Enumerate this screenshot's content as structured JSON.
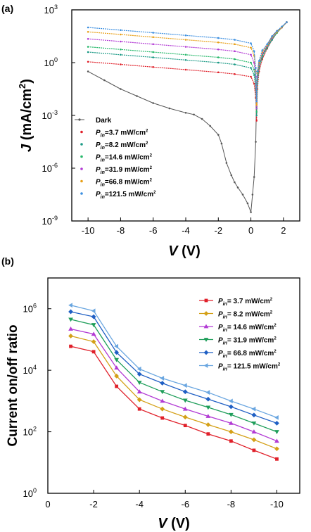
{
  "chart_data": [
    {
      "panel": "(a)",
      "type": "line",
      "xlabel": "V (V)",
      "xlabel_italic": "V",
      "xlabel_rest": " (V)",
      "ylabel": "J (mA/cm2)",
      "ylabel_italic": "J",
      "ylabel_rest": " (mA/cm",
      "ylabel_sup": "2",
      "ylabel_end": ")",
      "xlim": [
        -11,
        3
      ],
      "ylim_log10": [
        -9,
        3
      ],
      "yscale": "log",
      "x_ticks": [
        -10,
        -8,
        -6,
        -4,
        -2,
        0,
        2
      ],
      "y_ticks": [
        {
          "base": "10",
          "exp": "3",
          "log": 3
        },
        {
          "base": "10",
          "exp": "0",
          "log": 0
        },
        {
          "base": "10",
          "exp": "-3",
          "log": -3
        },
        {
          "base": "10",
          "exp": "-6",
          "log": -6
        },
        {
          "base": "10",
          "exp": "-9",
          "log": -9
        }
      ],
      "legend": "center-left",
      "series": [
        {
          "name": "Dark",
          "color": "#555555",
          "x": [
            -10,
            -9,
            -8,
            -7,
            -6,
            -5,
            -4,
            -3.5,
            -3,
            -2.5,
            -2,
            -1.8,
            -1.5,
            -1.2,
            -1,
            -0.8,
            -0.5,
            -0.2,
            0,
            0.1,
            0.2,
            0.3,
            0.35,
            0.4,
            0.5,
            0.7,
            1,
            1.3,
            1.6,
            1.9,
            2.2
          ],
          "y": [
            -0.5,
            -1.0,
            -1.5,
            -1.9,
            -2.3,
            -2.6,
            -2.85,
            -2.95,
            -3.2,
            -3.6,
            -4.1,
            -4.6,
            -5.7,
            -6.4,
            -6.8,
            -7.1,
            -7.5,
            -8.0,
            -8.5,
            -7.5,
            -6.5,
            -4.5,
            -1.6,
            -0.5,
            -0.2,
            0.4,
            1.0,
            1.5,
            1.8,
            2.0,
            2.3
          ]
        },
        {
          "name": "Pin=3.7 mW/cm2",
          "label_main": "=3.7 mW/cm",
          "color": "#e0202a",
          "x": [
            -10,
            -8,
            -6,
            -4,
            -2,
            -1,
            0,
            0.2,
            0.3,
            0.35,
            0.4,
            0.5,
            0.7,
            1,
            1.3,
            1.6,
            1.9,
            2.2
          ],
          "y": [
            0.05,
            -0.1,
            -0.25,
            -0.4,
            -0.55,
            -0.65,
            -0.8,
            -1.2,
            -2.0,
            -3.3,
            -1.5,
            -0.5,
            0.2,
            0.8,
            1.3,
            1.7,
            2.0,
            2.3
          ]
        },
        {
          "name": "Pin=8.2 mW/cm2",
          "label_main": "=8.2 mW/cm",
          "color": "#1c9a86",
          "x": [
            -10,
            -8,
            -6,
            -4,
            -2,
            -1,
            0,
            0.2,
            0.3,
            0.35,
            0.4,
            0.5,
            0.7,
            1,
            1.3,
            1.6,
            1.9,
            2.2
          ],
          "y": [
            0.6,
            0.45,
            0.3,
            0.15,
            0.0,
            -0.1,
            -0.3,
            -0.7,
            -1.5,
            -3.0,
            -1.2,
            -0.3,
            0.3,
            0.85,
            1.3,
            1.7,
            2.0,
            2.3
          ]
        },
        {
          "name": "Pin=14.6 mW/cm2",
          "label_main": "=14.6 mW/cm",
          "color": "#26b86a",
          "x": [
            -10,
            -8,
            -6,
            -4,
            -2,
            -1,
            0,
            0.2,
            0.3,
            0.35,
            0.4,
            0.5,
            0.7,
            1,
            1.3,
            1.6,
            1.9,
            2.2
          ],
          "y": [
            0.9,
            0.75,
            0.6,
            0.45,
            0.3,
            0.2,
            0.0,
            -0.4,
            -1.2,
            -2.8,
            -1.0,
            -0.2,
            0.4,
            0.9,
            1.35,
            1.7,
            2.0,
            2.3
          ]
        },
        {
          "name": "Pin=31.9 mW/cm2",
          "label_main": "=31.9 mW/cm",
          "color": "#b23ad4",
          "x": [
            -10,
            -8,
            -6,
            -4,
            -2,
            -1,
            0,
            0.2,
            0.3,
            0.35,
            0.4,
            0.5,
            0.7,
            1,
            1.3,
            1.6,
            1.9,
            2.2
          ],
          "y": [
            1.35,
            1.2,
            1.05,
            0.9,
            0.75,
            0.65,
            0.45,
            0.0,
            -0.8,
            -2.6,
            -0.8,
            -0.1,
            0.5,
            0.95,
            1.4,
            1.75,
            2.0,
            2.3
          ]
        },
        {
          "name": "Pin=66.8 mW/cm2",
          "label_main": "=66.8 mW/cm",
          "color": "#e8a018",
          "x": [
            -10,
            -8,
            -6,
            -4,
            -2,
            -1,
            0,
            0.2,
            0.3,
            0.35,
            0.4,
            0.5,
            0.7,
            1,
            1.3,
            1.6,
            1.9,
            2.2
          ],
          "y": [
            1.75,
            1.6,
            1.45,
            1.3,
            1.15,
            1.05,
            0.85,
            0.4,
            -0.5,
            -2.4,
            -0.6,
            0.0,
            0.6,
            1.0,
            1.45,
            1.75,
            2.0,
            2.3
          ]
        },
        {
          "name": "Pin=121.5 mW/cm2",
          "label_main": "=121.5 mW/cm",
          "color": "#3c8fe0",
          "x": [
            -10,
            -8,
            -6,
            -4,
            -2,
            -1,
            0,
            0.2,
            0.3,
            0.35,
            0.4,
            0.5,
            0.7,
            1,
            1.3,
            1.6,
            1.9,
            2.2
          ],
          "y": [
            2.0,
            1.85,
            1.7,
            1.55,
            1.4,
            1.3,
            1.1,
            0.65,
            -0.3,
            -2.2,
            -0.5,
            0.1,
            0.7,
            1.05,
            1.5,
            1.8,
            2.05,
            2.3
          ]
        }
      ]
    },
    {
      "panel": "(b)",
      "type": "line",
      "xlabel": "V (V)",
      "xlabel_italic": "V",
      "xlabel_rest": " (V)",
      "ylabel": "Current on/off ratio",
      "xlim": [
        0,
        -11
      ],
      "ylim_log10": [
        0,
        7
      ],
      "yscale": "log",
      "x_ticks": [
        {
          "label": "0",
          "v": 0
        },
        {
          "label": "-2",
          "v": -2
        },
        {
          "label": "-4",
          "v": -4
        },
        {
          "label": "-6",
          "v": -6
        },
        {
          "label": "-8",
          "v": -8
        },
        {
          "label": "-10",
          "v": -10
        }
      ],
      "y_ticks": [
        {
          "base": "10",
          "exp": "0",
          "log": 0
        },
        {
          "base": "10",
          "exp": "2",
          "log": 2
        },
        {
          "base": "10",
          "exp": "4",
          "log": 4
        },
        {
          "base": "10",
          "exp": "6",
          "log": 6
        }
      ],
      "legend": "top-right",
      "x": [
        -1,
        -2,
        -3,
        -4,
        -5,
        -6,
        -7,
        -8,
        -9,
        -10
      ],
      "series": [
        {
          "name": "Pin= 3.7 mW/cm2",
          "label_main": "= 3.7 mW/cm",
          "color": "#e0202a",
          "marker": "square",
          "y": [
            60000,
            40000,
            3000,
            550,
            280,
            160,
            85,
            50,
            25,
            13
          ]
        },
        {
          "name": "Pin= 8.2 mW/cm2",
          "label_main": "= 8.2 mW/cm",
          "color": "#d4a017",
          "marker": "diamond",
          "y": [
            130000,
            85000,
            6500,
            1100,
            550,
            300,
            170,
            100,
            55,
            28
          ]
        },
        {
          "name": "Pin= 14.6 mW/cm2",
          "label_main": "= 14.6 mW/cm",
          "color": "#b23ad4",
          "marker": "triangle-up",
          "y": [
            220000,
            150000,
            12000,
            2000,
            1000,
            550,
            320,
            190,
            100,
            50
          ]
        },
        {
          "name": "Pin= 31.9 mW/cm2",
          "label_main": "= 31.9 mW/cm",
          "color": "#1f9e5a",
          "marker": "triangle-down",
          "y": [
            450000,
            300000,
            22000,
            4000,
            2000,
            1050,
            620,
            360,
            190,
            100
          ]
        },
        {
          "name": "Pin= 66.8 mW/cm2",
          "label_main": "= 66.8 mW/cm",
          "color": "#1f5fc4",
          "marker": "diamond",
          "y": [
            800000,
            550000,
            38000,
            7500,
            3800,
            2000,
            1150,
            650,
            350,
            190
          ]
        },
        {
          "name": "Pin= 121.5 mW/cm2",
          "label_main": "= 121.5 mW/cm",
          "color": "#6aa6e0",
          "marker": "triangle-left",
          "y": [
            1300000,
            850000,
            60000,
            11000,
            5500,
            3200,
            1900,
            1000,
            550,
            290
          ]
        }
      ]
    }
  ]
}
